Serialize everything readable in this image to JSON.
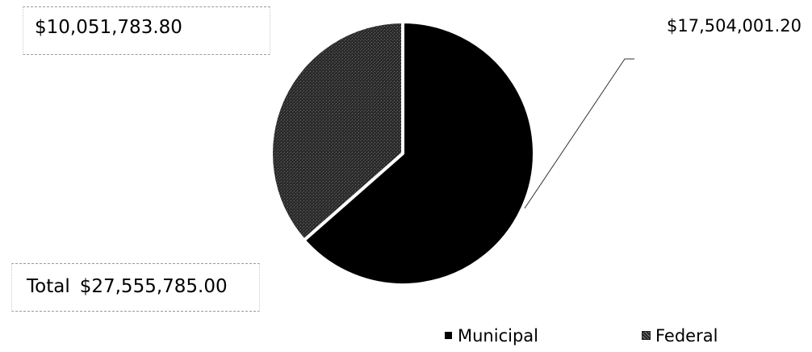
{
  "chart_data": {
    "type": "pie",
    "slices": [
      {
        "name": "Municipal",
        "value": 17504001.2,
        "label": "$17,504,001.20"
      },
      {
        "name": "Federal",
        "value": 10051783.8,
        "label": "$10,051,783.80"
      }
    ],
    "total": {
      "label": "Total",
      "value": "$27,555,785.00"
    },
    "legend": {
      "position": "bottom",
      "items": [
        "Municipal",
        "Federal"
      ]
    },
    "colors": {
      "Municipal": "#000000",
      "Federal": "#2e2e2e",
      "separator": "#ffffff",
      "leader_line": "#333333"
    }
  }
}
